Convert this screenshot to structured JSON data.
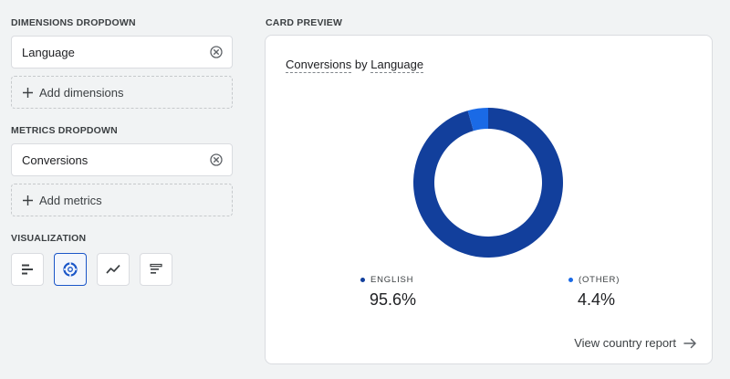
{
  "left_panel": {
    "dimensions_label": "DIMENSIONS DROPDOWN",
    "dimension_value": "Language",
    "add_dimensions_label": "Add dimensions",
    "metrics_label": "METRICS DROPDOWN",
    "metric_value": "Conversions",
    "add_metrics_label": "Add metrics",
    "visualization_label": "VISUALIZATION",
    "visualization_options": [
      {
        "icon": "horizontal-bar-chart-icon",
        "selected": false
      },
      {
        "icon": "donut-chart-icon",
        "selected": true
      },
      {
        "icon": "line-chart-icon",
        "selected": false
      },
      {
        "icon": "table-chart-icon",
        "selected": false
      }
    ]
  },
  "card_preview": {
    "section_label": "CARD PREVIEW",
    "title_metric": "Conversions",
    "title_by": "by",
    "title_dimension": "Language",
    "link_label": "View country report"
  },
  "chart_data": {
    "type": "pie",
    "title": "",
    "categories": [
      "ENGLISH",
      "(OTHER)"
    ],
    "values": [
      95.6,
      4.4
    ],
    "value_labels": [
      "95.6%",
      "4.4%"
    ],
    "colors": [
      "#123f9c",
      "#1a6ae6"
    ],
    "legend_position": "bottom"
  },
  "colors": {
    "accent": "#1a56c8",
    "background": "#f1f3f4"
  }
}
